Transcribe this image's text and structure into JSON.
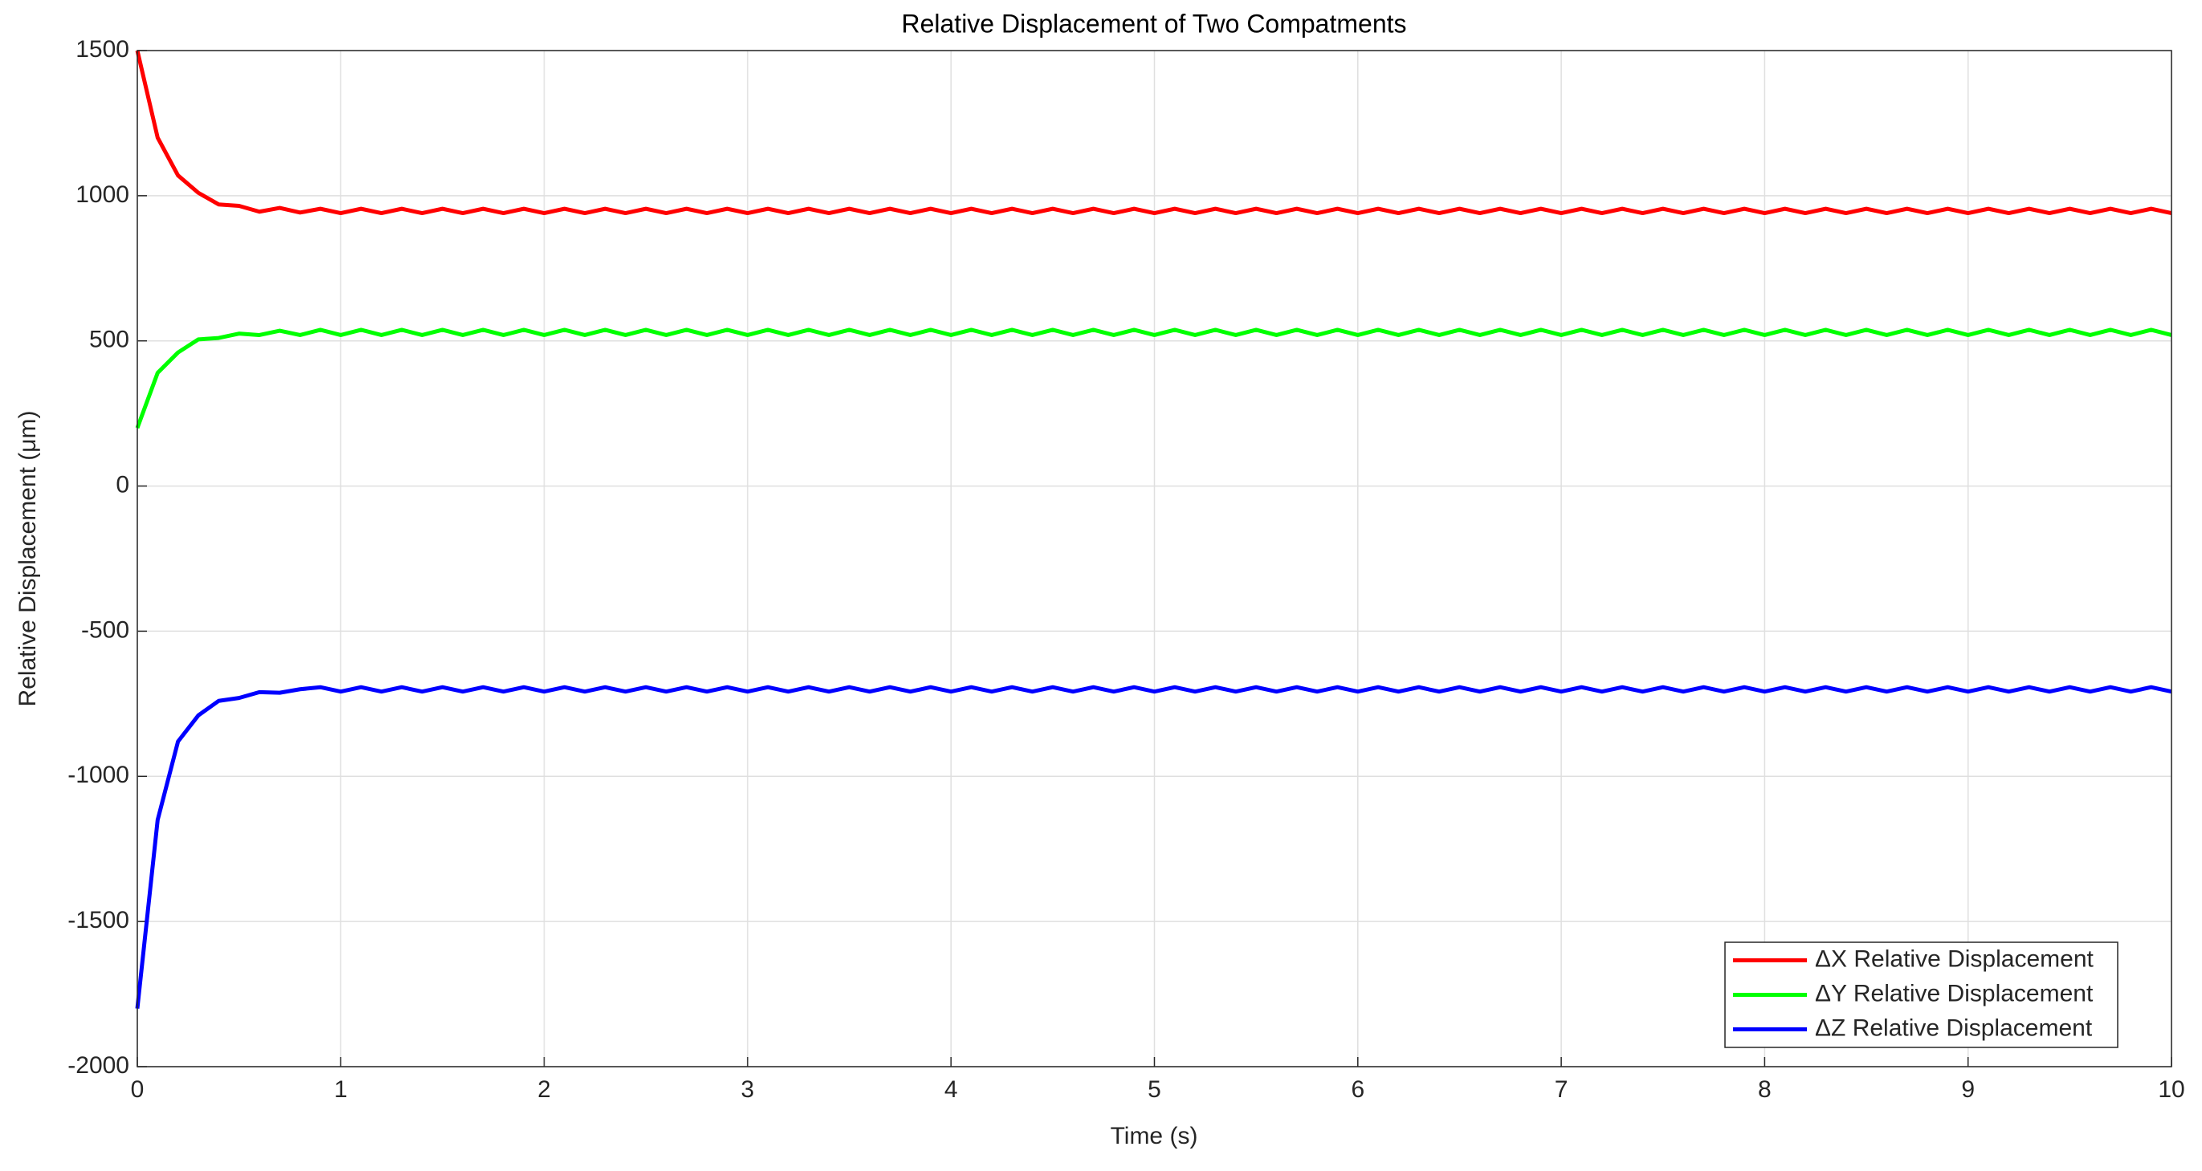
{
  "chart_data": {
    "type": "line",
    "title": "Relative Displacement of Two Compatments",
    "x_label": "Time (s)",
    "y_label": "Relative Displacement (μm)",
    "x": [
      0,
      0.1,
      0.2,
      0.3,
      0.4,
      0.5,
      0.6,
      0.7,
      0.8,
      0.9,
      1,
      1.1,
      1.2,
      1.3,
      1.4,
      1.5,
      1.6,
      1.7,
      1.8,
      1.9,
      2,
      2.1,
      2.2,
      2.3,
      2.4,
      2.5,
      2.6,
      2.7,
      2.8,
      2.9,
      3,
      3.1,
      3.2,
      3.3,
      3.4,
      3.5,
      3.6,
      3.7,
      3.8,
      3.9,
      4,
      4.1,
      4.2,
      4.3,
      4.4,
      4.5,
      4.6,
      4.7,
      4.8,
      4.9,
      5,
      5.1,
      5.2,
      5.3,
      5.4,
      5.5,
      5.6,
      5.7,
      5.8,
      5.9,
      6,
      6.1,
      6.2,
      6.3,
      6.4,
      6.5,
      6.6,
      6.7,
      6.8,
      6.9,
      7,
      7.1,
      7.2,
      7.3,
      7.4,
      7.5,
      7.6,
      7.7,
      7.8,
      7.9,
      8,
      8.1,
      8.2,
      8.3,
      8.4,
      8.5,
      8.6,
      8.7,
      8.8,
      8.9,
      9,
      9.1,
      9.2,
      9.3,
      9.4,
      9.5,
      9.6,
      9.7,
      9.8,
      9.9,
      10
    ],
    "series": [
      {
        "name": "ΔX Relative Displacement",
        "color": "#ff0000",
        "values": [
          1500,
          1200,
          1070,
          1010,
          970,
          965,
          945,
          958,
          942,
          955,
          940,
          955,
          940,
          955,
          940,
          955,
          940,
          955,
          940,
          955,
          940,
          955,
          940,
          955,
          940,
          955,
          940,
          955,
          940,
          955,
          940,
          955,
          940,
          955,
          940,
          955,
          940,
          955,
          940,
          955,
          940,
          955,
          940,
          955,
          940,
          955,
          940,
          955,
          940,
          955,
          940,
          955,
          940,
          955,
          940,
          955,
          940,
          955,
          940,
          955,
          940,
          955,
          940,
          955,
          940,
          955,
          940,
          955,
          940,
          955,
          940,
          955,
          940,
          955,
          940,
          955,
          940,
          955,
          940,
          955,
          940,
          955,
          940,
          955,
          940,
          955,
          940,
          955,
          940,
          955,
          940,
          955,
          940,
          955,
          940,
          955,
          940,
          955,
          940,
          955,
          940
        ]
      },
      {
        "name": "ΔY Relative Displacement",
        "color": "#00ff00",
        "values": [
          200,
          390,
          460,
          505,
          510,
          525,
          520,
          535,
          520,
          538,
          520,
          538,
          520,
          538,
          520,
          538,
          520,
          538,
          520,
          538,
          520,
          538,
          520,
          538,
          520,
          538,
          520,
          538,
          520,
          538,
          520,
          538,
          520,
          538,
          520,
          538,
          520,
          538,
          520,
          538,
          520,
          538,
          520,
          538,
          520,
          538,
          520,
          538,
          520,
          538,
          520,
          538,
          520,
          538,
          520,
          538,
          520,
          538,
          520,
          538,
          520,
          538,
          520,
          538,
          520,
          538,
          520,
          538,
          520,
          538,
          520,
          538,
          520,
          538,
          520,
          538,
          520,
          538,
          520,
          538,
          520,
          538,
          520,
          538,
          520,
          538,
          520,
          538,
          520,
          538,
          520,
          538,
          520,
          538,
          520,
          538,
          520,
          538,
          520,
          538,
          520
        ]
      },
      {
        "name": "ΔZ Relative Displacement",
        "color": "#0000ff",
        "values": [
          -1800,
          -1150,
          -880,
          -790,
          -740,
          -730,
          -710,
          -712,
          -700,
          -693,
          -708,
          -693,
          -708,
          -693,
          -708,
          -693,
          -708,
          -693,
          -708,
          -693,
          -708,
          -693,
          -708,
          -693,
          -708,
          -693,
          -708,
          -693,
          -708,
          -693,
          -708,
          -693,
          -708,
          -693,
          -708,
          -693,
          -708,
          -693,
          -708,
          -693,
          -708,
          -693,
          -708,
          -693,
          -708,
          -693,
          -708,
          -693,
          -708,
          -693,
          -708,
          -693,
          -708,
          -693,
          -708,
          -693,
          -708,
          -693,
          -708,
          -693,
          -708,
          -693,
          -708,
          -693,
          -708,
          -693,
          -708,
          -693,
          -708,
          -693,
          -708,
          -693,
          -708,
          -693,
          -708,
          -693,
          -708,
          -693,
          -708,
          -693,
          -708,
          -693,
          -708,
          -693,
          -708,
          -693,
          -708,
          -693,
          -708,
          -693,
          -708,
          -693,
          -708,
          -693,
          -708,
          -693,
          -708,
          -693,
          -708,
          -693,
          -708
        ]
      }
    ],
    "xlim": [
      0,
      10
    ],
    "xticks": [
      0,
      1,
      2,
      3,
      4,
      5,
      6,
      7,
      8,
      9,
      10
    ],
    "ylim": [
      -2000,
      1500
    ],
    "yticks": [
      -2000,
      -1500,
      -1000,
      -500,
      0,
      500,
      1000,
      1500
    ],
    "grid": true,
    "legend": "lower right"
  }
}
